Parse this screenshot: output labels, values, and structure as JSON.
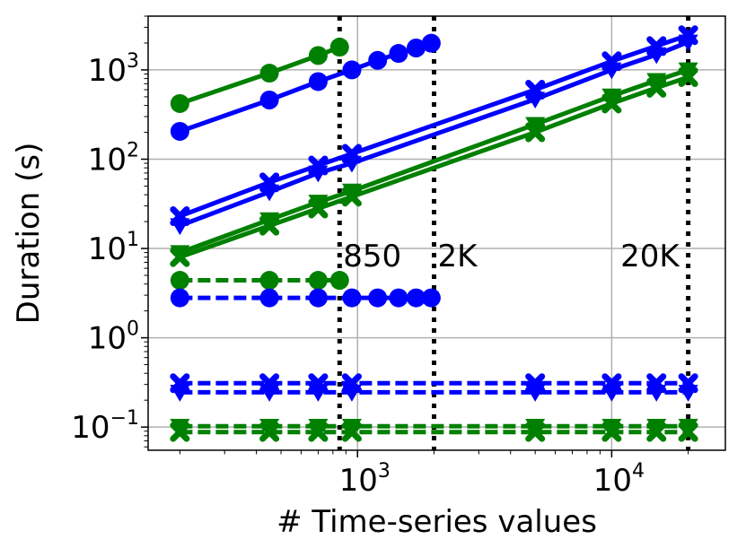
{
  "chart_data": {
    "type": "line",
    "xlabel": "# Time-series values",
    "ylabel": "Duration (s)",
    "x_scale": "log",
    "y_scale": "log",
    "xlim": [
      150,
      28000
    ],
    "ylim": [
      0.055,
      4000
    ],
    "grid": true,
    "x_tick_labels": [
      {
        "value": 1000,
        "base": "10",
        "exp": "3"
      },
      {
        "value": 10000,
        "base": "10",
        "exp": "4"
      }
    ],
    "y_tick_labels": [
      {
        "value": 0.1,
        "base": "10",
        "exp": "−1"
      },
      {
        "value": 1,
        "base": "10",
        "exp": "0"
      },
      {
        "value": 10,
        "base": "10",
        "exp": "1"
      },
      {
        "value": 100,
        "base": "10",
        "exp": "2"
      },
      {
        "value": 1000,
        "base": "10",
        "exp": "3"
      }
    ],
    "vlines": [
      {
        "x": 850,
        "label": "850"
      },
      {
        "x": 2000,
        "label": "2K"
      },
      {
        "x": 20000,
        "label": "20K"
      }
    ],
    "colors": {
      "blue": "#0000ff",
      "green": "#008000",
      "grid": "#b0b0b0",
      "vline": "#000000"
    },
    "series": [
      {
        "color": "green",
        "style": "solid",
        "marker": "circle",
        "x": [
          200,
          450,
          700,
          850
        ],
        "y": [
          420,
          920,
          1450,
          1800
        ]
      },
      {
        "color": "blue",
        "style": "solid",
        "marker": "circle",
        "x": [
          200,
          450,
          700,
          950,
          1200,
          1450,
          1700,
          1950
        ],
        "y": [
          205,
          460,
          740,
          1000,
          1280,
          1530,
          1760,
          1990
        ]
      },
      {
        "color": "blue",
        "style": "solid",
        "marker": "x",
        "x": [
          200,
          450,
          700,
          950,
          5000,
          10000,
          15000,
          20000
        ],
        "y": [
          23,
          55,
          85,
          115,
          600,
          1250,
          1850,
          2450
        ]
      },
      {
        "color": "blue",
        "style": "solid",
        "marker": "triangle_down",
        "x": [
          200,
          450,
          700,
          950,
          5000,
          10000,
          15000,
          20000
        ],
        "y": [
          18,
          43,
          70,
          90,
          470,
          1000,
          1480,
          2050
        ]
      },
      {
        "color": "green",
        "style": "solid",
        "marker": "triangle_down",
        "x": [
          200,
          450,
          700,
          950,
          5000,
          10000,
          15000,
          20000
        ],
        "y": [
          9,
          21,
          33,
          44,
          245,
          510,
          760,
          1000
        ]
      },
      {
        "color": "green",
        "style": "solid",
        "marker": "x",
        "x": [
          200,
          450,
          700,
          950,
          5000,
          10000,
          15000,
          20000
        ],
        "y": [
          8,
          18,
          28,
          38,
          200,
          420,
          630,
          830
        ]
      },
      {
        "color": "green",
        "style": "dashed",
        "marker": "circle",
        "x": [
          200,
          450,
          700,
          850
        ],
        "y": [
          4.4,
          4.4,
          4.4,
          4.4
        ]
      },
      {
        "color": "blue",
        "style": "dashed",
        "marker": "circle",
        "x": [
          200,
          450,
          700,
          950,
          1200,
          1450,
          1700,
          1950
        ],
        "y": [
          2.8,
          2.8,
          2.8,
          2.8,
          2.8,
          2.8,
          2.8,
          2.8
        ]
      },
      {
        "color": "blue",
        "style": "dashed",
        "marker": "x",
        "x": [
          200,
          450,
          700,
          950,
          5000,
          10000,
          15000,
          20000
        ],
        "y": [
          0.31,
          0.31,
          0.31,
          0.31,
          0.31,
          0.31,
          0.31,
          0.31
        ]
      },
      {
        "color": "blue",
        "style": "dashed",
        "marker": "triangle_down",
        "x": [
          200,
          450,
          700,
          950,
          5000,
          10000,
          15000,
          20000
        ],
        "y": [
          0.245,
          0.245,
          0.245,
          0.245,
          0.245,
          0.245,
          0.245,
          0.245
        ]
      },
      {
        "color": "green",
        "style": "dashed",
        "marker": "triangle_down",
        "x": [
          200,
          450,
          700,
          950,
          5000,
          10000,
          15000,
          20000
        ],
        "y": [
          0.102,
          0.102,
          0.102,
          0.102,
          0.102,
          0.102,
          0.102,
          0.102
        ]
      },
      {
        "color": "green",
        "style": "dashed",
        "marker": "x",
        "x": [
          200,
          450,
          700,
          950,
          5000,
          10000,
          15000,
          20000
        ],
        "y": [
          0.088,
          0.088,
          0.088,
          0.088,
          0.088,
          0.088,
          0.088,
          0.088
        ]
      }
    ]
  }
}
